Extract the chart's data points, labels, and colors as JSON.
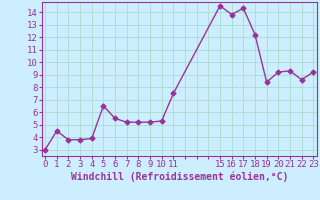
{
  "x": [
    0,
    1,
    2,
    3,
    4,
    5,
    6,
    7,
    8,
    9,
    10,
    11,
    15,
    16,
    17,
    18,
    19,
    20,
    21,
    22,
    23
  ],
  "y": [
    3.0,
    4.5,
    3.8,
    3.8,
    3.9,
    6.5,
    5.5,
    5.2,
    5.2,
    5.2,
    5.3,
    7.5,
    14.5,
    13.8,
    14.3,
    12.2,
    8.4,
    9.2,
    9.3,
    8.6,
    9.2
  ],
  "line_color": "#993399",
  "marker": "D",
  "markersize": 2.5,
  "linewidth": 1.0,
  "bg_color": "#cceeff",
  "grid_color": "#aaddcc",
  "xlabel": "Windchill (Refroidissement éolien,°C)",
  "xlabel_fontsize": 7,
  "ylabel_ticks": [
    3,
    4,
    5,
    6,
    7,
    8,
    9,
    10,
    11,
    12,
    13,
    14
  ],
  "xtick_labels": [
    "0",
    "1",
    "2",
    "3",
    "4",
    "5",
    "6",
    "7",
    "8",
    "9",
    "10",
    "11",
    "",
    "",
    "",
    "15",
    "16",
    "17",
    "18",
    "19",
    "20",
    "21",
    "22",
    "23"
  ],
  "xtick_positions": [
    0,
    1,
    2,
    3,
    4,
    5,
    6,
    7,
    8,
    9,
    10,
    11,
    12,
    13,
    14,
    15,
    16,
    17,
    18,
    19,
    20,
    21,
    22,
    23
  ],
  "ylim": [
    2.5,
    14.8
  ],
  "xlim": [
    -0.3,
    23.3
  ],
  "tick_fontsize": 6.5,
  "tick_color": "#993399",
  "spine_color": "#993399"
}
